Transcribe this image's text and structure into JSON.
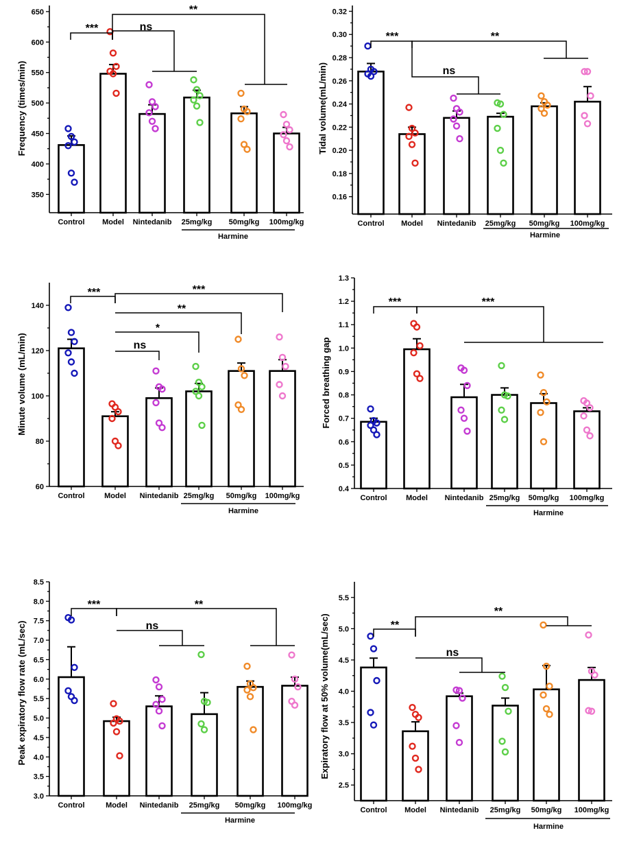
{
  "colors": {
    "Control": "#1418b8",
    "Model": "#e0281e",
    "Nintedanib": "#c43ad2",
    "25mg/kg": "#5ccf48",
    "50mg/kg": "#f08a28",
    "100mg/kg": "#ee77cc"
  },
  "chart_data": [
    {
      "type": "bar",
      "ylabel": "Frequency (times/min)",
      "ylim": [
        320,
        660
      ],
      "yticks": [
        350,
        400,
        450,
        500,
        550,
        600,
        650
      ],
      "categories": [
        "Control",
        "Model",
        "Nintedanib",
        "25mg/kg",
        "50mg/kg",
        "100mg/kg"
      ],
      "group_label": "Harmine",
      "means": [
        431,
        548,
        482,
        509,
        483,
        450
      ],
      "errors": [
        15,
        15,
        15,
        12,
        11,
        10
      ],
      "points": [
        [
          458,
          445,
          436,
          430,
          385,
          370
        ],
        [
          617,
          582,
          560,
          552,
          548,
          516
        ],
        [
          530,
          502,
          494,
          484,
          470,
          458
        ],
        [
          538,
          522,
          512,
          505,
          495,
          468
        ],
        [
          516,
          490,
          486,
          474,
          432,
          424
        ],
        [
          481,
          465,
          456,
          448,
          438,
          428
        ]
      ],
      "annotations": [
        "***",
        "ns",
        "**"
      ]
    },
    {
      "type": "bar",
      "ylabel": "Tidal volume(mL/min)",
      "ylim": [
        0.145,
        0.325
      ],
      "yticks": [
        "0.16",
        "0.18",
        "0.20",
        "0.22",
        "0.24",
        "0.26",
        "0.28",
        "0.30",
        "0.32"
      ],
      "categories": [
        "Control",
        "Model",
        "Nintedanib",
        "25mg/kg",
        "50mg/kg",
        "100mg/kg"
      ],
      "group_label": "Harmine",
      "means": [
        0.268,
        0.214,
        0.228,
        0.229,
        0.238,
        0.242
      ],
      "errors": [
        0.007,
        0.006,
        0.006,
        0.003,
        0.003,
        0.013
      ],
      "points": [
        [
          0.29,
          0.27,
          0.268,
          0.266,
          0.264
        ],
        [
          0.237,
          0.219,
          0.215,
          0.212,
          0.205,
          0.189
        ],
        [
          0.245,
          0.236,
          0.233,
          0.227,
          0.221,
          0.21
        ],
        [
          0.241,
          0.24,
          0.231,
          0.219,
          0.2,
          0.189
        ],
        [
          0.247,
          0.242,
          0.239,
          0.236,
          0.232
        ],
        [
          0.268,
          0.268,
          0.247,
          0.23,
          0.223
        ]
      ],
      "annotations": [
        "***",
        "**",
        "ns"
      ]
    },
    {
      "type": "bar",
      "ylabel": "Minute volume (mL/min)",
      "ylim": [
        60,
        150
      ],
      "yticks": [
        60,
        80,
        100,
        120,
        140
      ],
      "categories": [
        "Control",
        "Model",
        "Nintedanib",
        "25mg/kg",
        "50mg/kg",
        "100mg/kg"
      ],
      "group_label": "Harmine",
      "means": [
        121,
        91,
        99,
        102,
        111,
        111
      ],
      "errors": [
        4,
        2,
        4.5,
        3.5,
        3.5,
        5
      ],
      "points": [
        [
          139,
          128,
          124,
          119,
          115,
          110
        ],
        [
          96.5,
          95,
          93,
          90,
          80,
          78
        ],
        [
          111,
          104,
          103,
          97,
          88,
          86
        ],
        [
          113,
          106,
          104,
          102,
          100,
          87
        ],
        [
          125,
          112,
          109,
          96,
          94
        ],
        [
          126,
          117,
          113,
          105,
          100
        ]
      ],
      "annotations": [
        "***",
        "***",
        "**",
        "*",
        "ns"
      ]
    },
    {
      "type": "bar",
      "ylabel": "Forced breathing gap",
      "ylim": [
        0.4,
        1.3
      ],
      "yticks": [
        "0.4",
        "0.5",
        "0.6",
        "0.7",
        "0.8",
        "0.9",
        "1.0",
        "1.1",
        "1.2",
        "1.3"
      ],
      "categories": [
        "Control",
        "Model",
        "Nintedanib",
        "25mg/kg",
        "50mg/kg",
        "100mg/kg"
      ],
      "group_label": "Harmine",
      "means": [
        0.685,
        0.995,
        0.79,
        0.8,
        0.765,
        0.73
      ],
      "errors": [
        0.015,
        0.045,
        0.055,
        0.03,
        0.04,
        0.015
      ],
      "points": [
        [
          0.74,
          0.69,
          0.68,
          0.67,
          0.65,
          0.63
        ],
        [
          1.105,
          1.09,
          1.01,
          0.98,
          0.89,
          0.87
        ],
        [
          0.915,
          0.905,
          0.84,
          0.735,
          0.7,
          0.645
        ],
        [
          0.925,
          0.8,
          0.795,
          0.735,
          0.695
        ],
        [
          0.885,
          0.81,
          0.77,
          0.725,
          0.6
        ],
        [
          0.775,
          0.765,
          0.745,
          0.71,
          0.65,
          0.625
        ]
      ],
      "annotations": [
        "***",
        "***"
      ]
    },
    {
      "type": "bar",
      "ylabel": "Peak expiratory flow rate (mL/sec)",
      "ylim": [
        3.0,
        8.5
      ],
      "yticks": [
        "3.0",
        "3.5",
        "4.0",
        "4.5",
        "5.0",
        "5.5",
        "6.0",
        "6.5",
        "7.0",
        "7.5",
        "8.0",
        "8.5"
      ],
      "categories": [
        "Control",
        "Model",
        "Nintedanib",
        "25mg/kg",
        "50mg/kg",
        "100mg/kg"
      ],
      "group_label": "Harmine",
      "means": [
        6.05,
        4.92,
        5.3,
        5.1,
        5.8,
        5.83
      ],
      "errors": [
        0.78,
        0.1,
        0.27,
        0.55,
        0.15,
        0.22
      ],
      "points": [
        [
          7.58,
          7.52,
          6.3,
          5.7,
          5.55,
          5.45
        ],
        [
          5.37,
          4.98,
          4.92,
          4.87,
          4.65,
          4.03
        ],
        [
          5.98,
          5.8,
          5.48,
          5.35,
          5.18,
          4.8
        ],
        [
          6.63,
          5.43,
          5.4,
          4.85,
          4.7
        ],
        [
          6.33,
          5.88,
          5.78,
          5.72,
          5.55,
          4.7
        ],
        [
          6.62,
          6.0,
          5.8,
          5.43,
          5.33
        ]
      ],
      "annotations": [
        "***",
        "**",
        "ns"
      ]
    },
    {
      "type": "bar",
      "ylabel": "Expiratory flow at 50% volume(mL/sec)",
      "ylim": [
        2.25,
        5.75
      ],
      "yticks": [
        "2.5",
        "3.0",
        "3.5",
        "4.0",
        "4.5",
        "5.0",
        "5.5"
      ],
      "categories": [
        "Control",
        "Model",
        "Nintedanib",
        "25mg/kg",
        "50mg/kg",
        "100mg/kg"
      ],
      "group_label": "Harmine",
      "means": [
        4.38,
        3.36,
        3.92,
        3.77,
        4.03,
        4.18
      ],
      "errors": [
        0.15,
        0.15,
        0.05,
        0.12,
        0.38,
        0.2
      ],
      "points": [
        [
          4.88,
          4.68,
          4.17,
          3.66,
          3.46
        ],
        [
          3.74,
          3.63,
          3.58,
          3.12,
          2.93,
          2.75
        ],
        [
          4.02,
          4.01,
          3.89,
          3.45,
          3.18
        ],
        [
          4.24,
          4.06,
          3.68,
          3.2,
          3.03
        ],
        [
          5.06,
          4.4,
          4.08,
          3.94,
          3.72,
          3.63
        ],
        [
          4.9,
          4.32,
          4.26,
          3.69,
          3.68
        ]
      ],
      "annotations": [
        "**",
        "**",
        "ns"
      ]
    }
  ]
}
